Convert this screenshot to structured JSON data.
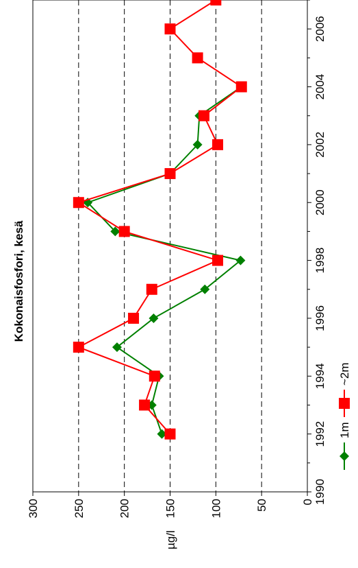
{
  "chart_data": {
    "type": "line",
    "title": "Kokonaisfosfori, kesä",
    "xlabel": "",
    "ylabel": "µg/l",
    "xlim": [
      1990,
      2007
    ],
    "ylim": [
      0,
      300
    ],
    "x_ticks": [
      "1990",
      "1992",
      "1994",
      "1996",
      "1998",
      "2000",
      "2002",
      "2004",
      "2006"
    ],
    "y_ticks": [
      "0",
      "50",
      "100",
      "150",
      "200",
      "250",
      "300"
    ],
    "gridlines": [
      50,
      100,
      150,
      200,
      250
    ],
    "grid": "dashed horizontal (value) lines",
    "orientation": "rotated 90° clockwise",
    "legend_position": "bottom",
    "series": [
      {
        "name": "1m",
        "color": "#008000",
        "marker": "diamond",
        "x": [
          1992,
          1993,
          1994,
          1995,
          1996,
          1997,
          1998,
          1999,
          2000,
          2001,
          2002,
          2003,
          2004
        ],
        "y": [
          159,
          170,
          162,
          208,
          168,
          112,
          73,
          210,
          240,
          150,
          120,
          118,
          72
        ]
      },
      {
        "name": "~2m",
        "color": "#ff0000",
        "marker": "square",
        "x": [
          1992,
          1993,
          1994,
          1995,
          1996,
          1997,
          1998,
          1999,
          2000,
          2001,
          2002,
          2003,
          2004,
          2005,
          2006,
          2007
        ],
        "y": [
          150,
          178,
          167,
          250,
          190,
          170,
          98,
          200,
          250,
          150,
          98,
          113,
          72,
          120,
          150,
          100
        ]
      }
    ]
  }
}
